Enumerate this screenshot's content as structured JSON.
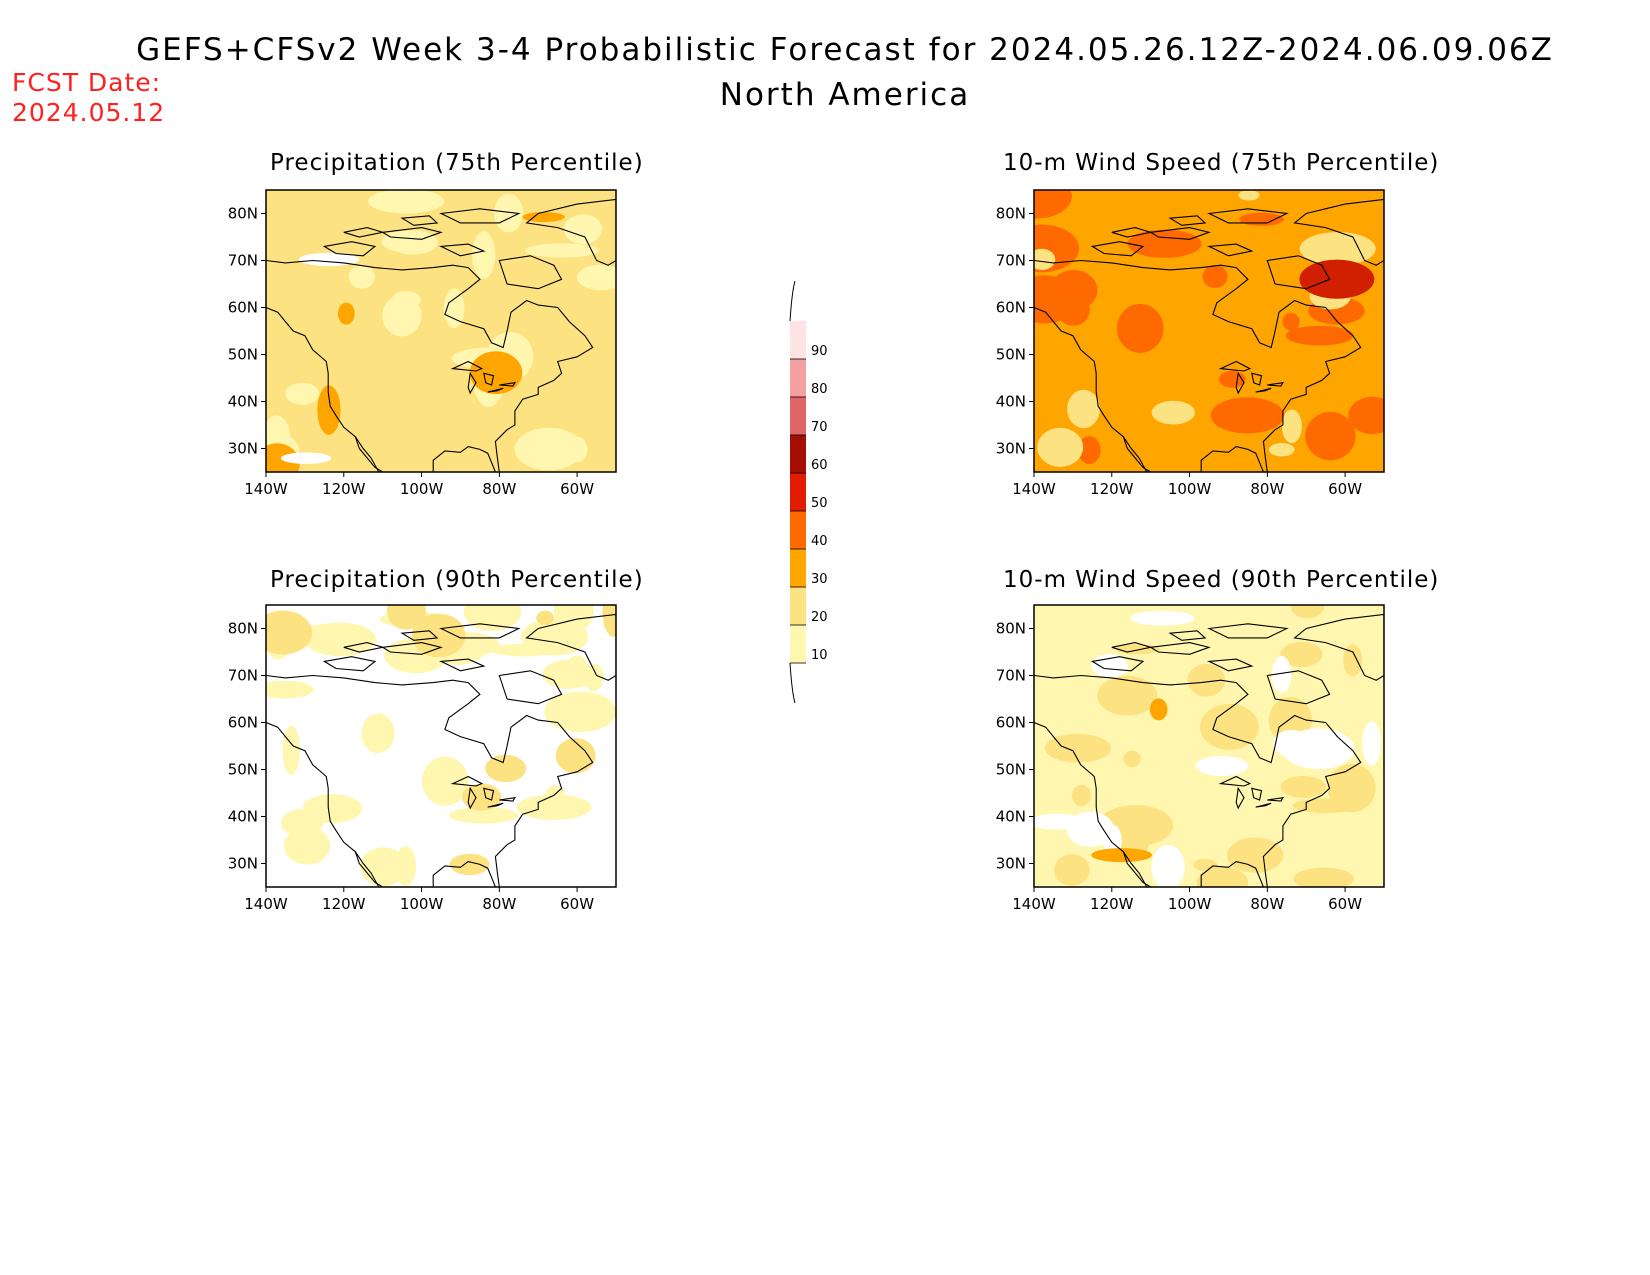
{
  "header": {
    "title": "GEFS+CFSv2 Week 3-4 Probabilistic Forecast for 2024.05.26.12Z-2024.06.09.06Z",
    "subtitle": "North America",
    "fcst_label": "FCST Date:",
    "fcst_value": "2024.05.12"
  },
  "axes": {
    "lat_labels": [
      "80N",
      "70N",
      "60N",
      "50N",
      "40N",
      "30N"
    ],
    "lon_labels": [
      "140W",
      "120W",
      "100W",
      "80W",
      "60W"
    ]
  },
  "panels": [
    {
      "title": "Precipitation (75th Percentile)",
      "base": "#fde282",
      "patches": [
        [
          "#fff7b0",
          0.35
        ],
        [
          "#ffa500",
          0.08
        ],
        [
          "#ffffff",
          0.03
        ]
      ]
    },
    {
      "title": "10-m Wind Speed (75th Percentile)",
      "base": "#ffa500",
      "patches": [
        [
          "#ff6a00",
          0.3
        ],
        [
          "#fde282",
          0.15
        ],
        [
          "#d12000",
          0.02
        ]
      ]
    },
    {
      "title": "Precipitation (90th Percentile)",
      "base": "#ffffff",
      "patches": [
        [
          "#fff7b0",
          0.45
        ],
        [
          "#fde282",
          0.15
        ]
      ]
    },
    {
      "title": "10-m Wind Speed (90th Percentile)",
      "base": "#fff7b0",
      "patches": [
        [
          "#fde282",
          0.35
        ],
        [
          "#ffffff",
          0.18
        ],
        [
          "#ffa500",
          0.03
        ]
      ]
    }
  ],
  "colorbar": {
    "levels": [
      "10",
      "20",
      "30",
      "40",
      "50",
      "60",
      "70",
      "80",
      "90"
    ],
    "colors": [
      "#fff7b0",
      "#fde282",
      "#ffa500",
      "#ff6a00",
      "#e21c00",
      "#a50f00",
      "#e06666",
      "#f5a0a0",
      "#fde3e3"
    ]
  }
}
